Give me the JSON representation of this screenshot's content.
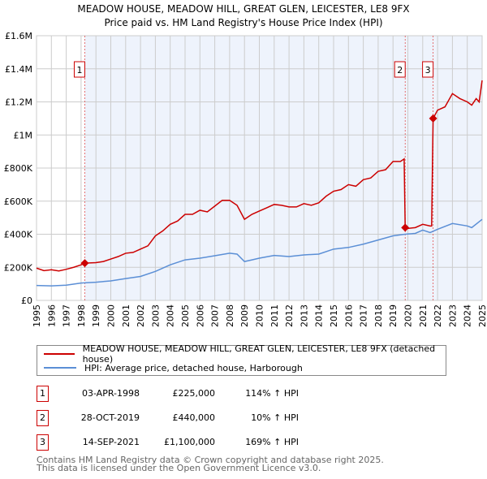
{
  "chart_data": {
    "type": "line",
    "title": "MEADOW HOUSE, MEADOW HILL, GREAT GLEN, LEICESTER, LE8 9FX",
    "subtitle": "Price paid vs. HM Land Registry's House Price Index (HPI)",
    "xlim": [
      1995,
      2025
    ],
    "ylim": [
      0,
      1600000
    ],
    "x_ticks": [
      "1995",
      "1996",
      "1997",
      "1998",
      "1999",
      "2000",
      "2001",
      "2002",
      "2003",
      "2004",
      "2005",
      "2006",
      "2007",
      "2008",
      "2009",
      "2010",
      "2011",
      "2012",
      "2013",
      "2014",
      "2015",
      "2016",
      "2017",
      "2018",
      "2019",
      "2020",
      "2021",
      "2022",
      "2023",
      "2024",
      "2025"
    ],
    "y_ticks": [
      {
        "v": 0,
        "l": "£0"
      },
      {
        "v": 200000,
        "l": "£200K"
      },
      {
        "v": 400000,
        "l": "£400K"
      },
      {
        "v": 600000,
        "l": "£600K"
      },
      {
        "v": 800000,
        "l": "£800K"
      },
      {
        "v": 1000000,
        "l": "£1M"
      },
      {
        "v": 1200000,
        "l": "£1.2M"
      },
      {
        "v": 1400000,
        "l": "£1.4M"
      },
      {
        "v": 1600000,
        "l": "£1.6M"
      }
    ],
    "grid": true,
    "series": [
      {
        "name": "MEADOW HOUSE, MEADOW HILL, GREAT GLEN, LEICESTER, LE8 9FX (detached house)",
        "color": "#cc0000",
        "points": [
          [
            1995,
            195
          ],
          [
            1995.5,
            180
          ],
          [
            1996,
            185
          ],
          [
            1996.5,
            178
          ],
          [
            1997,
            188
          ],
          [
            1997.5,
            200
          ],
          [
            1998,
            215
          ],
          [
            1998.25,
            225
          ],
          [
            1999,
            228
          ],
          [
            1999.5,
            235
          ],
          [
            2000,
            250
          ],
          [
            2000.5,
            265
          ],
          [
            2001,
            285
          ],
          [
            2001.5,
            290
          ],
          [
            2002,
            310
          ],
          [
            2002.5,
            330
          ],
          [
            2003,
            390
          ],
          [
            2003.5,
            420
          ],
          [
            2004,
            460
          ],
          [
            2004.5,
            480
          ],
          [
            2005,
            520
          ],
          [
            2005.5,
            520
          ],
          [
            2006,
            545
          ],
          [
            2006.5,
            535
          ],
          [
            2007,
            570
          ],
          [
            2007.5,
            605
          ],
          [
            2008,
            605
          ],
          [
            2008.5,
            575
          ],
          [
            2009,
            490
          ],
          [
            2009.5,
            520
          ],
          [
            2010,
            540
          ],
          [
            2010.5,
            560
          ],
          [
            2011,
            580
          ],
          [
            2011.5,
            575
          ],
          [
            2012,
            565
          ],
          [
            2012.5,
            565
          ],
          [
            2013,
            585
          ],
          [
            2013.5,
            575
          ],
          [
            2014,
            590
          ],
          [
            2014.5,
            630
          ],
          [
            2015,
            660
          ],
          [
            2015.5,
            670
          ],
          [
            2016,
            700
          ],
          [
            2016.5,
            690
          ],
          [
            2017,
            730
          ],
          [
            2017.5,
            740
          ],
          [
            2018,
            780
          ],
          [
            2018.5,
            790
          ],
          [
            2019,
            840
          ],
          [
            2019.5,
            840
          ],
          [
            2019.75,
            855
          ],
          [
            2019.82,
            440
          ],
          [
            2020,
            435
          ],
          [
            2020.5,
            440
          ],
          [
            2021,
            460
          ],
          [
            2021.5,
            450
          ],
          [
            2021.6,
            450
          ],
          [
            2021.7,
            1100
          ],
          [
            2022,
            1150
          ],
          [
            2022.5,
            1170
          ],
          [
            2023,
            1250
          ],
          [
            2023.5,
            1220
          ],
          [
            2024,
            1200
          ],
          [
            2024.3,
            1180
          ],
          [
            2024.6,
            1220
          ],
          [
            2024.8,
            1200
          ],
          [
            2025,
            1330
          ]
        ]
      },
      {
        "name": "HPI: Average price, detached house, Harborough",
        "color": "#5b8fd6",
        "points": [
          [
            1995,
            90
          ],
          [
            1996,
            88
          ],
          [
            1997,
            92
          ],
          [
            1998,
            105
          ],
          [
            1999,
            110
          ],
          [
            2000,
            118
          ],
          [
            2001,
            132
          ],
          [
            2002,
            145
          ],
          [
            2003,
            175
          ],
          [
            2004,
            215
          ],
          [
            2005,
            245
          ],
          [
            2006,
            255
          ],
          [
            2007,
            270
          ],
          [
            2008,
            285
          ],
          [
            2008.5,
            280
          ],
          [
            2009,
            235
          ],
          [
            2009.5,
            245
          ],
          [
            2010,
            255
          ],
          [
            2011,
            272
          ],
          [
            2012,
            265
          ],
          [
            2013,
            275
          ],
          [
            2014,
            280
          ],
          [
            2015,
            310
          ],
          [
            2016,
            320
          ],
          [
            2017,
            340
          ],
          [
            2018,
            365
          ],
          [
            2019,
            390
          ],
          [
            2019.8,
            400
          ],
          [
            2020.5,
            405
          ],
          [
            2021,
            425
          ],
          [
            2021.5,
            410
          ],
          [
            2022,
            430
          ],
          [
            2023,
            465
          ],
          [
            2024,
            450
          ],
          [
            2024.3,
            440
          ],
          [
            2025,
            490
          ]
        ]
      }
    ],
    "sales": [
      {
        "n": "1",
        "x": 1998.25,
        "value": 225000,
        "date": "03-APR-1998",
        "price": "£225,000",
        "hpi": "114% ↑ HPI"
      },
      {
        "n": "2",
        "x": 2019.82,
        "value": 440000,
        "date": "28-OCT-2019",
        "price": "£440,000",
        "hpi": "10% ↑ HPI"
      },
      {
        "n": "3",
        "x": 2021.7,
        "value": 1100000,
        "date": "14-SEP-2021",
        "price": "£1,100,000",
        "hpi": "169% ↑ HPI"
      }
    ],
    "legend_position": "bottom"
  },
  "footer": [
    "Contains HM Land Registry data © Crown copyright and database right 2025.",
    "This data is licensed under the Open Government Licence v3.0."
  ]
}
